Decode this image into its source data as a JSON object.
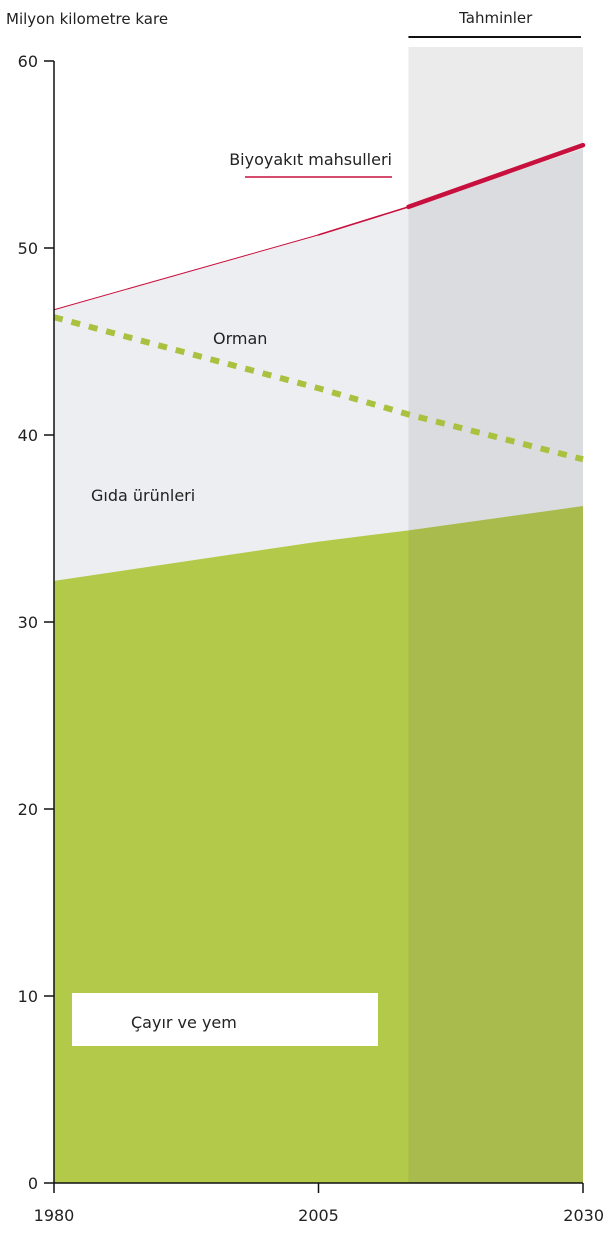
{
  "chart_data": {
    "type": "area",
    "title": "",
    "ylabel": "Milyon kilometre kare",
    "xlabel": "",
    "x_ticks": [
      1980,
      2005,
      2030
    ],
    "y_ticks": [
      0,
      10,
      20,
      30,
      40,
      50,
      60
    ],
    "xlim": [
      1980,
      2030
    ],
    "ylim": [
      0,
      60
    ],
    "projection": {
      "label": "Tahminler",
      "start": 2013.5,
      "end": 2030
    },
    "x": [
      1980,
      2005,
      2013.5,
      2030
    ],
    "series": [
      {
        "name": "Çayır ve yem",
        "kind": "area",
        "color": "#b3c94a",
        "values": [
          32.2,
          34.3,
          34.9,
          36.2
        ]
      },
      {
        "name": "Gıda ürünleri",
        "kind": "area",
        "color": "#eceef2",
        "values": [
          46.7,
          50.7,
          52.2,
          55.3
        ]
      },
      {
        "name": "Biyoyakıt mahsulleri",
        "kind": "line",
        "color": "#c8103e",
        "values": [
          46.7,
          50.7,
          52.2,
          55.5
        ]
      },
      {
        "name": "Orman",
        "kind": "dashed-line",
        "color": "#a8c240",
        "values": [
          46.3,
          42.5,
          41.1,
          38.7
        ]
      }
    ],
    "grid": false,
    "colors": {
      "projection_shade": "#5a5a5a"
    }
  }
}
